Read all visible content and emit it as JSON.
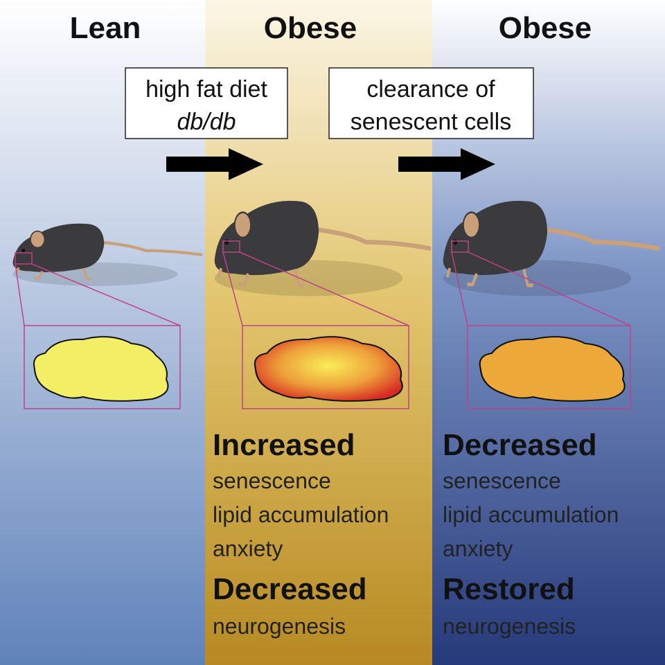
{
  "columns": [
    {
      "title": "Lean"
    },
    {
      "title": "Obese",
      "effects": [
        {
          "heading": "Increased",
          "items": [
            "senescence",
            "lipid accumulation",
            "anxiety"
          ]
        },
        {
          "heading": "Decreased",
          "items": [
            "neurogenesis"
          ]
        }
      ]
    },
    {
      "title": "Obese",
      "effects": [
        {
          "heading": "Decreased",
          "items": [
            "senescence",
            "lipid accumulation",
            "anxiety"
          ]
        },
        {
          "heading": "Restored",
          "items": [
            "neurogenesis"
          ]
        }
      ]
    }
  ],
  "transitions": [
    {
      "lines": [
        "high fat diet",
        "db/db"
      ]
    },
    {
      "lines": [
        "clearance of",
        "senescent cells"
      ]
    }
  ]
}
